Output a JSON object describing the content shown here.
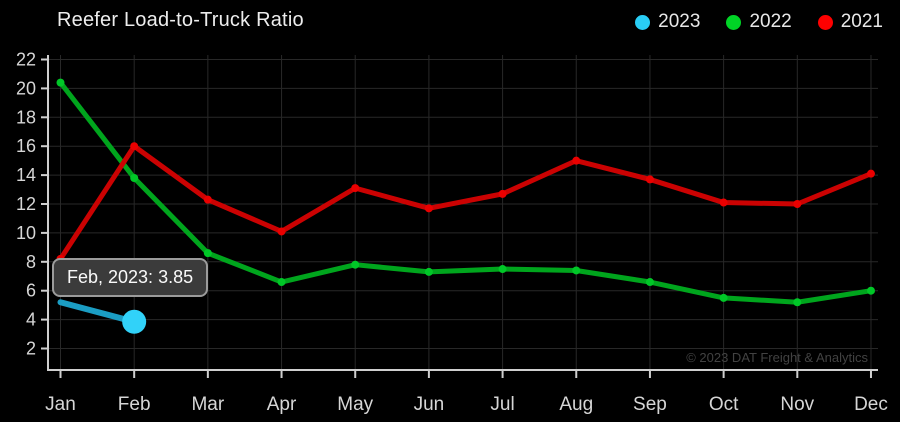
{
  "header": {
    "title": "Reefer Load-to-Truck Ratio"
  },
  "legend": [
    {
      "label": "2023",
      "color": "#29cdf5"
    },
    {
      "label": "2022",
      "color": "#00d426"
    },
    {
      "label": "2021",
      "color": "#fe0000"
    }
  ],
  "tooltip": {
    "text": "Feb, 2023: 3.85"
  },
  "watermark": "© 2023 DAT Freight & Analytics",
  "colors": {
    "background": "#000000",
    "gridline": "#282828",
    "axis": "#cfcfcf",
    "tick_label": "#d6d6d6"
  },
  "chart_data": {
    "type": "line",
    "title": "Reefer Load-to-Truck Ratio",
    "categories": [
      "Jan",
      "Feb",
      "Mar",
      "Apr",
      "May",
      "Jun",
      "Jul",
      "Aug",
      "Sep",
      "Oct",
      "Nov",
      "Dec"
    ],
    "series": [
      {
        "name": "2023",
        "color": "#1b9dc3",
        "marker_color": "#31d2f9",
        "point_markers": false,
        "values": [
          5.2,
          3.85,
          null,
          null,
          null,
          null,
          null,
          null,
          null,
          null,
          null,
          null
        ]
      },
      {
        "name": "2022",
        "color": "#00a51d",
        "marker_color": "#00c727",
        "point_markers": true,
        "values": [
          20.4,
          13.8,
          8.6,
          6.6,
          7.8,
          7.3,
          7.5,
          7.4,
          6.6,
          5.5,
          5.2,
          6.0
        ]
      },
      {
        "name": "2021",
        "color": "#cb0202",
        "marker_color": "#ea0000",
        "point_markers": true,
        "values": [
          8.2,
          16.0,
          12.3,
          10.1,
          13.1,
          11.7,
          12.7,
          15.0,
          13.7,
          12.1,
          12.0,
          14.1
        ]
      }
    ],
    "highlight": {
      "series": "2023",
      "category": "Feb",
      "index": 1,
      "value": 3.85,
      "color": "#31d2f9"
    },
    "y_ticks": [
      2,
      4,
      6,
      8,
      10,
      12,
      14,
      16,
      18,
      20,
      22
    ],
    "ylim": [
      2,
      22
    ],
    "grid": true,
    "legend_position": "top-right"
  }
}
